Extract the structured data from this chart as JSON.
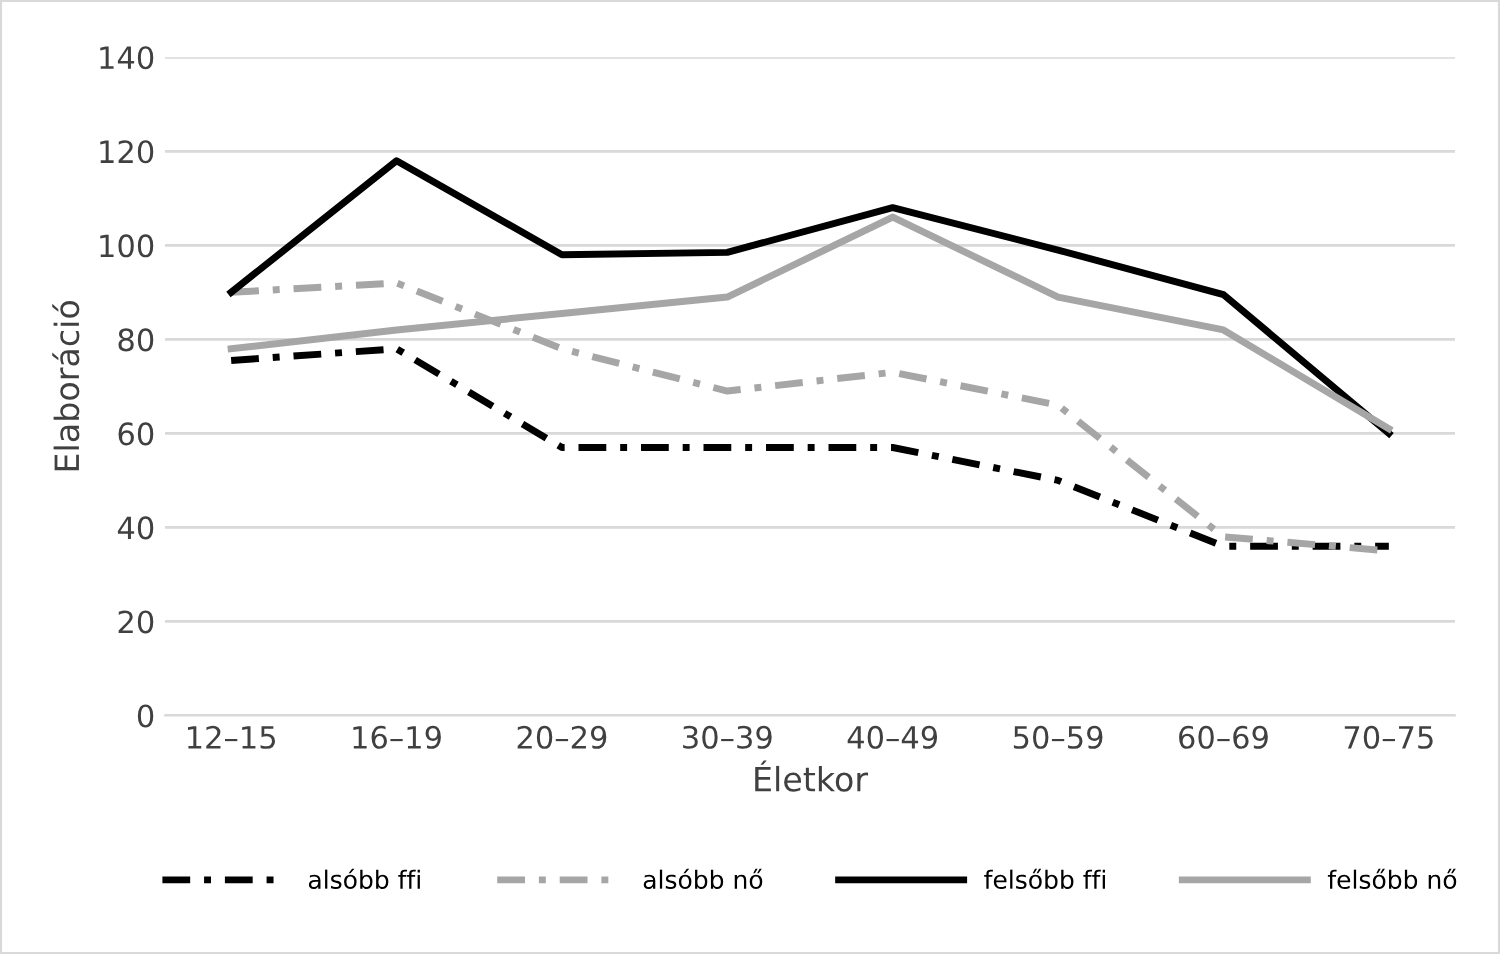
{
  "chart_data": {
    "type": "line",
    "xlabel": "Életkor",
    "ylabel": "Elaboráció",
    "categories": [
      "12–15",
      "16–19",
      "20–29",
      "30–39",
      "40–49",
      "50–59",
      "60–69",
      "70–75"
    ],
    "series": [
      {
        "name": "alsóbb ffi",
        "color": "#000000",
        "line_style": "dashed",
        "values": [
          75.5,
          78,
          57,
          57,
          57,
          50,
          36,
          36
        ]
      },
      {
        "name": "alsóbb nő",
        "color": "#a6a6a6",
        "line_style": "dashed",
        "values": [
          90,
          92,
          78,
          69,
          73,
          66,
          38,
          35
        ]
      },
      {
        "name": "felsőbb ffi",
        "color": "#000000",
        "line_style": "solid",
        "values": [
          90,
          118,
          98,
          98.5,
          108,
          99,
          89.5,
          60
        ]
      },
      {
        "name": "felsőbb nő",
        "color": "#a6a6a6",
        "line_style": "solid",
        "values": [
          78,
          82,
          85.5,
          89,
          106,
          89,
          82,
          61
        ]
      }
    ],
    "ylim": [
      0,
      140
    ],
    "yticks": [
      0,
      20,
      40,
      60,
      80,
      100,
      120,
      140
    ],
    "grid": "y",
    "legend": "bottom",
    "marker": "none"
  }
}
